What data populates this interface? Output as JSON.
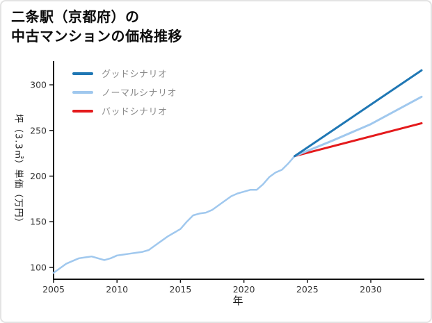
{
  "window": {
    "background": "#ffffff",
    "border_color": "#e3e3e3"
  },
  "title": {
    "line1": "二条駅（京都府）の",
    "line2": "中古マンションの価格推移"
  },
  "axes": {
    "xlabel": "年",
    "ylabel": "坪（3.3㎡）単価（万円）"
  },
  "legend": {
    "items": [
      {
        "label": "グッドシナリオ",
        "color": "#1f77b4"
      },
      {
        "label": "ノーマルシナリオ",
        "color": "#a0c8ee"
      },
      {
        "label": "バッドシナリオ",
        "color": "#e41a1c"
      }
    ]
  },
  "chart_data": {
    "type": "line",
    "title": "二条駅（京都府）の中古マンションの価格推移",
    "xlabel": "年",
    "ylabel": "坪（3.3㎡）単価（万円）",
    "xlim": [
      2005,
      2034
    ],
    "ylim": [
      87,
      324.5
    ],
    "xticks": [
      2005,
      2010,
      2015,
      2020,
      2025,
      2030
    ],
    "yticks": [
      100,
      150,
      200,
      250,
      300
    ],
    "grid": false,
    "legend_position": "upper-left",
    "axis_color": "#111111",
    "tick_label_color": "#333333",
    "series": [
      {
        "id": "history",
        "name": "history",
        "color": "#a0c8ee",
        "width": 2.5,
        "in_legend": false,
        "x": [
          2005,
          2005.5,
          2006,
          2006.5,
          2007,
          2007.5,
          2008,
          2008.5,
          2009,
          2009.5,
          2010,
          2010.5,
          2011,
          2011.5,
          2012,
          2012.5,
          2013,
          2013.5,
          2014,
          2014.5,
          2015,
          2015.5,
          2016,
          2016.5,
          2017,
          2017.5,
          2018,
          2018.5,
          2019,
          2019.5,
          2020,
          2020.5,
          2021,
          2021.5,
          2022,
          2022.5,
          2023,
          2023.5,
          2024
        ],
        "values": [
          94,
          99,
          104,
          107,
          110,
          111,
          112,
          110,
          108,
          110,
          113,
          114,
          115,
          116,
          117,
          119,
          124,
          129,
          134,
          138,
          142,
          150,
          157,
          159,
          160,
          163,
          168,
          173,
          178,
          181,
          183,
          185,
          185,
          191,
          199,
          204,
          207,
          214,
          222
        ]
      },
      {
        "id": "bad",
        "name": "バッドシナリオ",
        "color": "#e41a1c",
        "width": 3,
        "in_legend": true,
        "x": [
          2024,
          2034
        ],
        "values": [
          222,
          258
        ]
      },
      {
        "id": "normal",
        "name": "ノーマルシナリオ",
        "color": "#a0c8ee",
        "width": 3,
        "in_legend": true,
        "x": [
          2024,
          2027,
          2030,
          2034
        ],
        "values": [
          222,
          239,
          257,
          287
        ]
      },
      {
        "id": "good",
        "name": "グッドシナリオ",
        "color": "#1f77b4",
        "width": 3,
        "in_legend": true,
        "x": [
          2024,
          2034
        ],
        "values": [
          222,
          316
        ]
      }
    ]
  }
}
